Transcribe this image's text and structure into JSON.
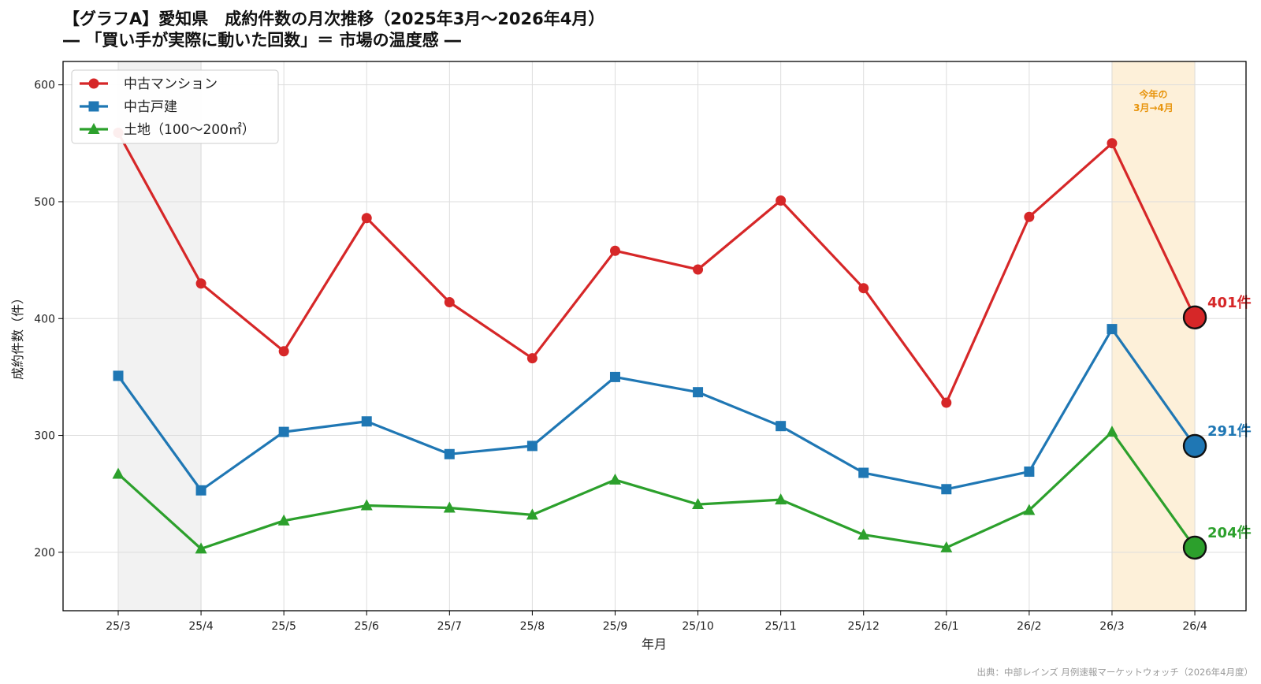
{
  "chart_data": {
    "type": "line",
    "title": "【グラフA】愛知県　成約件数の月次推移（2025年3月～2026年4月）",
    "subtitle": "― 「買い手が実際に動いた回数」＝ 市場の温度感 ―",
    "xlabel": "年月",
    "ylabel": "成約件数（件）",
    "categories": [
      "25/3",
      "25/4",
      "25/5",
      "25/6",
      "25/7",
      "25/8",
      "25/9",
      "25/10",
      "25/11",
      "25/12",
      "26/1",
      "26/2",
      "26/3",
      "26/4"
    ],
    "ylim": [
      150,
      620
    ],
    "yticks": [
      200,
      300,
      400,
      500,
      600
    ],
    "grid": true,
    "legend_position": "top-left",
    "series": [
      {
        "name": "中古マンション",
        "marker": "circle",
        "color": "#d62728",
        "values": [
          559,
          430,
          372,
          486,
          414,
          366,
          458,
          442,
          501,
          426,
          328,
          487,
          550,
          401
        ],
        "end_label": "401件"
      },
      {
        "name": "中古戸建",
        "marker": "square",
        "color": "#1f77b4",
        "values": [
          351,
          253,
          303,
          312,
          284,
          291,
          350,
          337,
          308,
          268,
          254,
          269,
          391,
          291
        ],
        "end_label": "291件"
      },
      {
        "name": "土地（100～200㎡）",
        "marker": "triangle",
        "color": "#2ca02c",
        "values": [
          267,
          203,
          227,
          240,
          238,
          232,
          262,
          241,
          245,
          215,
          204,
          236,
          303,
          204
        ],
        "end_label": "204件"
      }
    ],
    "shaded_regions": [
      {
        "from": "25/3",
        "to": "25/4",
        "color": "#f2f2f2"
      },
      {
        "from": "26/3",
        "to": "26/4",
        "color": "#fdf0d9",
        "label_line1": "今年の",
        "label_line2": "3月→4月"
      }
    ],
    "source": "出典：中部レインズ 月例速報マーケットウォッチ（2026年4月度）"
  }
}
